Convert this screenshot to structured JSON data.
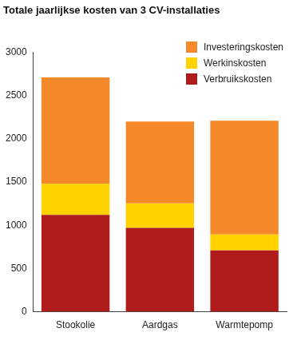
{
  "chart_data": {
    "type": "bar",
    "title": "Totale jaarlijkse kosten van 3 CV-installaties",
    "categories": [
      "Stookolie",
      "Aardgas",
      "Warmtepomp"
    ],
    "series": [
      {
        "name": "Verbruikskosten",
        "color": "#b01c1c",
        "values": [
          1120,
          970,
          710
        ]
      },
      {
        "name": "Werkinskosten",
        "color": "#ffd200",
        "values": [
          360,
          285,
          185
        ]
      },
      {
        "name": "Investeringskosten",
        "color": "#f5892a",
        "values": [
          1230,
          945,
          1315
        ]
      }
    ],
    "stacked": true,
    "ylim": [
      0,
      3000
    ],
    "yticks": [
      0,
      500,
      1000,
      1500,
      2000,
      2500,
      3000
    ],
    "grid": false,
    "legend": "upper right"
  }
}
